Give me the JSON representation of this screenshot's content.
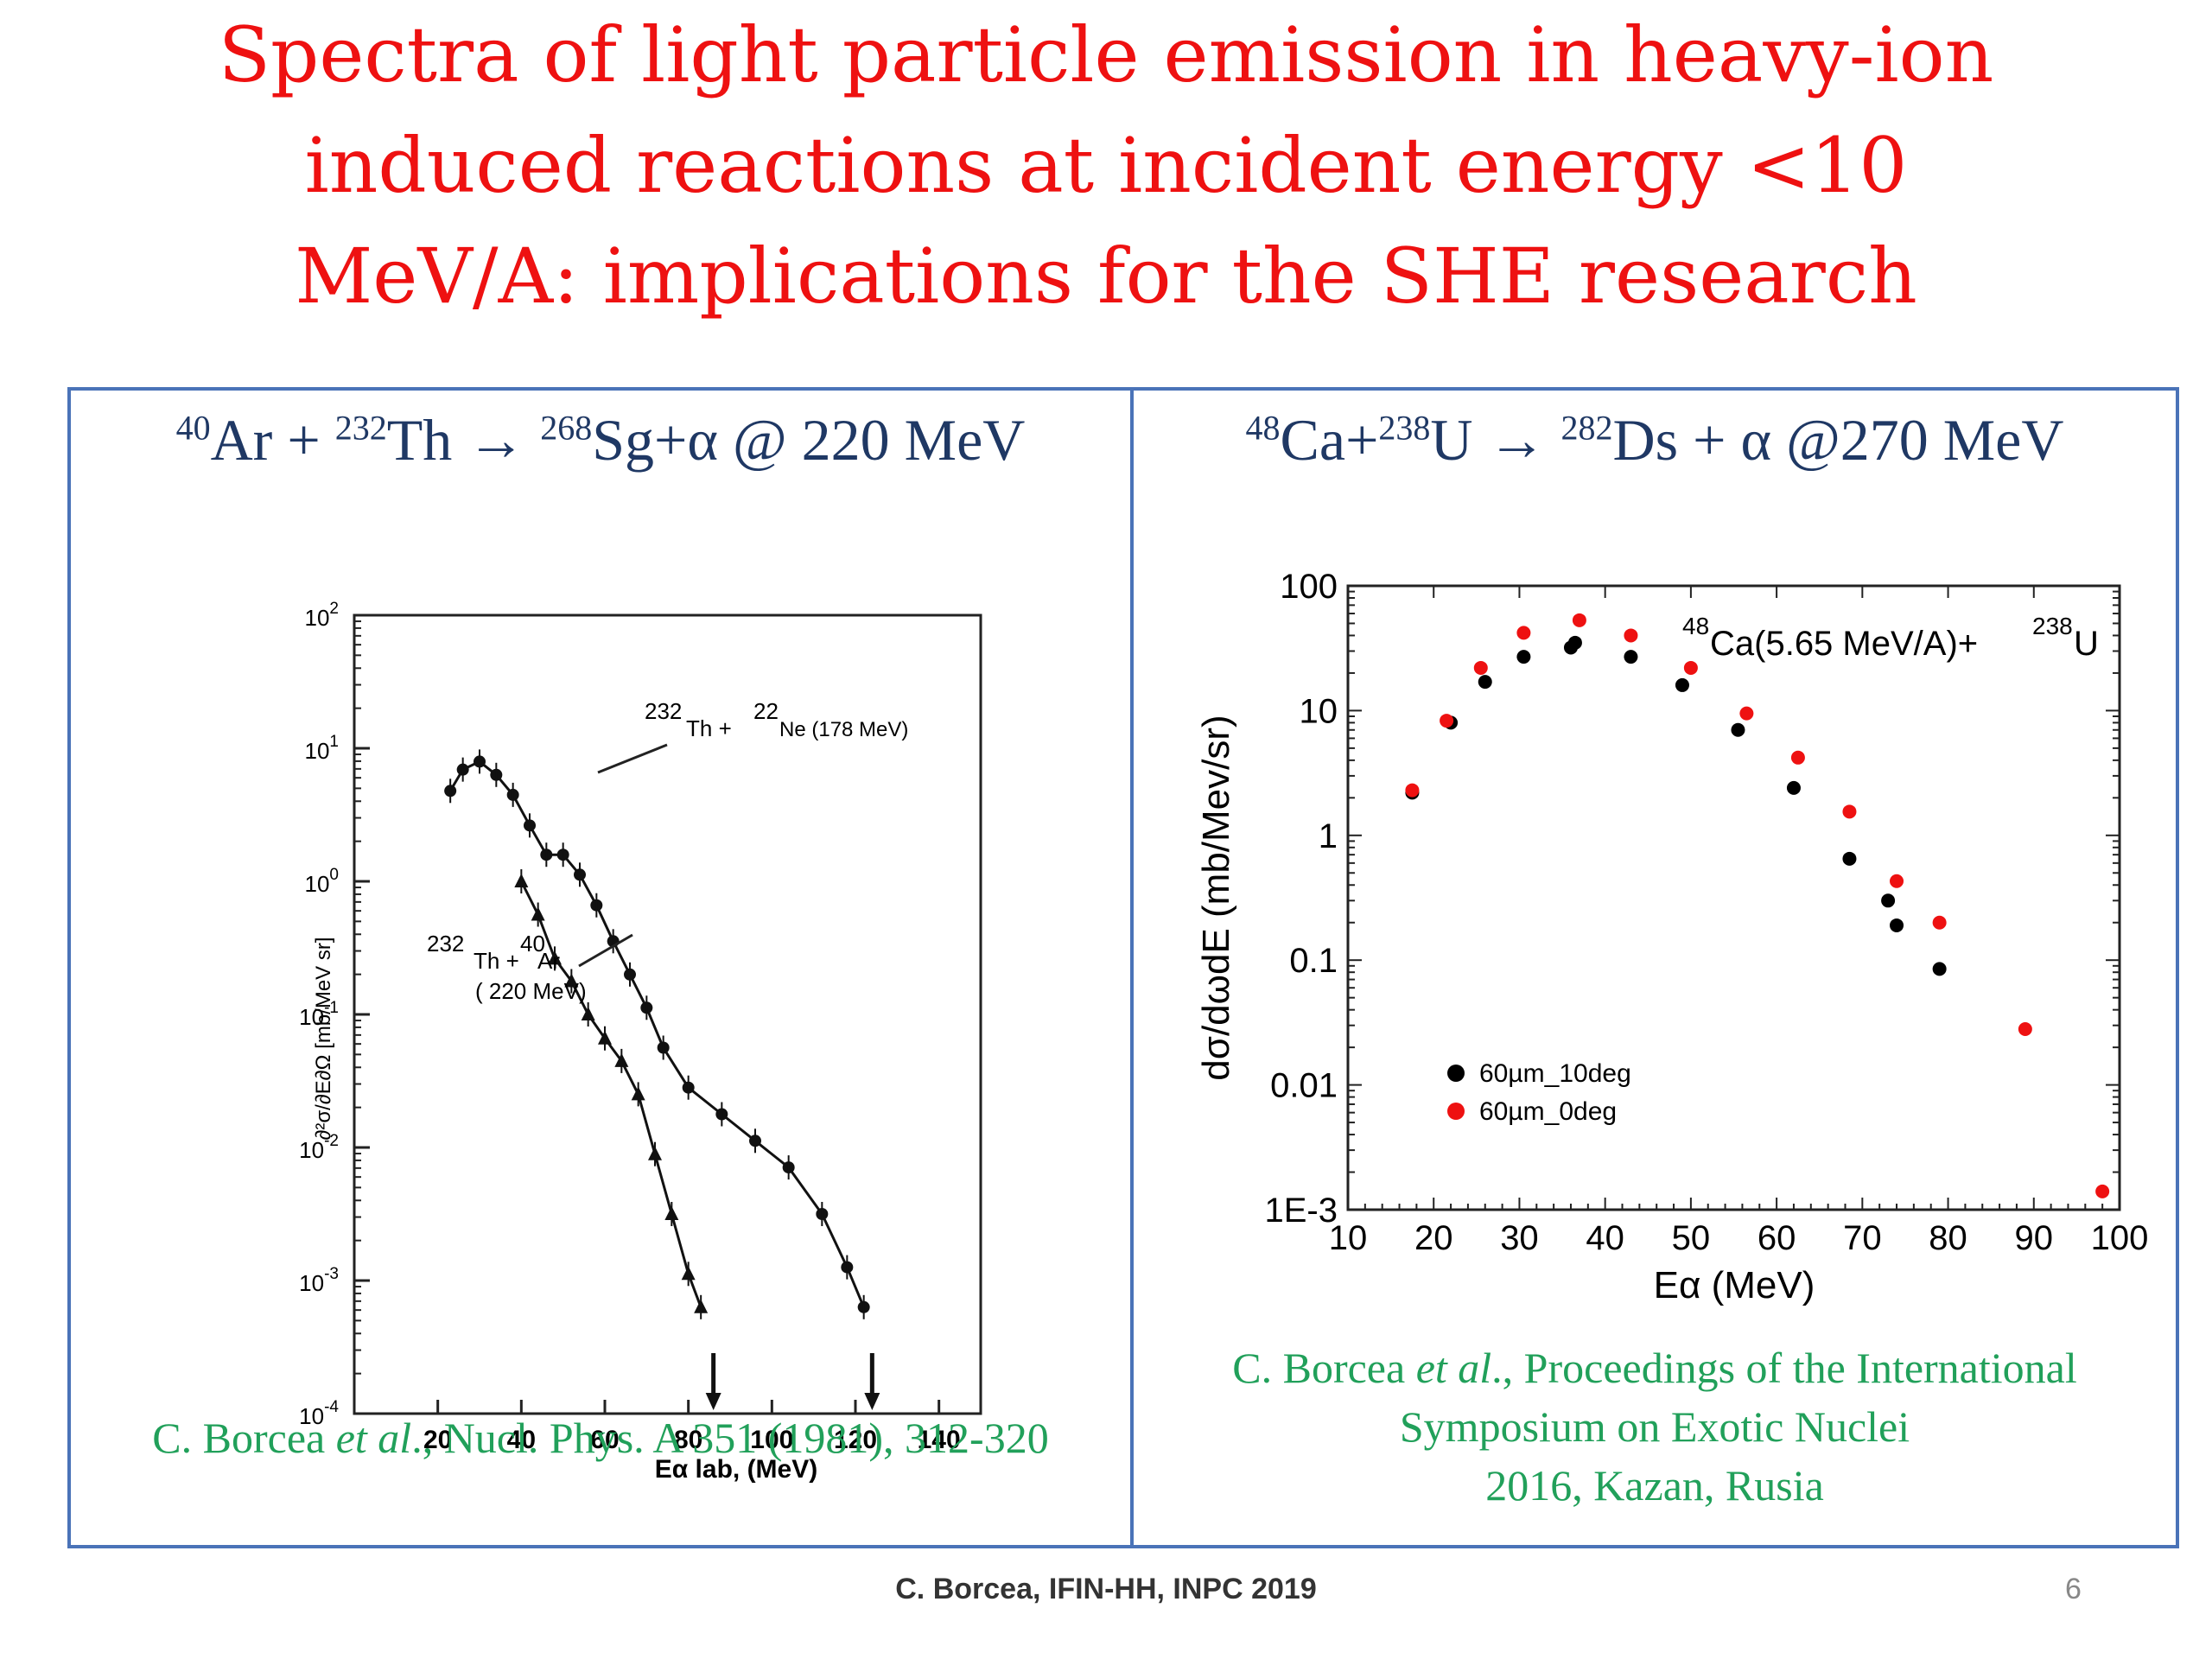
{
  "title": {
    "line1": "Spectra of light particle emission in heavy-ion",
    "line2": "induced reactions at incident energy <10",
    "line3": "MeV/A: implications for the SHE research"
  },
  "left_panel": {
    "reaction": {
      "a_mass": "40",
      "a_sym": "Ar + ",
      "b_mass": "232",
      "b_sym": "Th → ",
      "c_mass": "268",
      "c_sym": "Sg+α @ 220 MeV"
    },
    "citation": {
      "author": "C. Borcea ",
      "etal": "et al",
      "rest": "., Nucl. Phys. A 351 (1981), 312-320"
    }
  },
  "right_panel": {
    "reaction": {
      "a_mass": "48",
      "a_sym": "Ca+",
      "b_mass": "238",
      "b_sym": "U → ",
      "c_mass": "282",
      "c_sym": "Ds + α  @270 MeV"
    },
    "citation": {
      "author": "C. Borcea ",
      "etal": "et al",
      "line1_rest": "., Proceedings of the International",
      "line2": "Symposium on Exotic Nuclei",
      "line3": "2016, Kazan, Rusia"
    }
  },
  "footer": "C. Borcea, IFIN-HH, INPC 2019",
  "page_number": "6",
  "colors": {
    "title": "#ee1111",
    "reaction": "#1f3864",
    "citation": "#21a05a",
    "border": "#4a73b8",
    "series_black": "#000000",
    "series_red": "#ee1111"
  },
  "chart_data": [
    {
      "type": "line",
      "xlabel": "Eα lab, (MeV)",
      "ylabel": "∂²σ/∂E∂Ω [mb/MeV sr]",
      "x_ticks": [
        "20",
        "40",
        "60",
        "80",
        "100",
        "120",
        "140"
      ],
      "y_ticks": [
        "10^2",
        "10^1",
        "10^0",
        "10^-1",
        "10^-2",
        "10^-3",
        "10^-4"
      ],
      "xlim": [
        0,
        150
      ],
      "ylim_log10": [
        -4,
        2
      ],
      "y_scale": "log",
      "annotations": [
        {
          "isotope": "232",
          "sym": "Th + ",
          "proj_mass": "22",
          "proj": "Ne (178 MeV)"
        },
        {
          "isotope": "232",
          "sym": "Th + ",
          "proj_mass": "40",
          "proj": "Ar",
          "energy": "( 220 MeV)"
        }
      ],
      "arrows_x": [
        86,
        124
      ],
      "series": [
        {
          "x": [
            23,
            26,
            30,
            34,
            38,
            42,
            46,
            50,
            54,
            58,
            62,
            66,
            70,
            74,
            80,
            88,
            96,
            104,
            112,
            118,
            122
          ],
          "y": [
            0.68,
            0.84,
            0.9,
            0.8,
            0.65,
            0.42,
            0.2,
            0.2,
            0.05,
            -0.18,
            -0.45,
            -0.7,
            -0.95,
            -1.25,
            -1.55,
            -1.75,
            -1.95,
            -2.15,
            -2.5,
            -2.9,
            -3.2
          ]
        },
        {
          "x": [
            40,
            44,
            48,
            52,
            56,
            60,
            64,
            68,
            72,
            76,
            80,
            83
          ],
          "y": [
            0.0,
            -0.25,
            -0.58,
            -0.75,
            -1.0,
            -1.18,
            -1.35,
            -1.6,
            -2.05,
            -2.5,
            -2.95,
            -3.2
          ]
        }
      ]
    },
    {
      "type": "scatter",
      "xlabel": "Eα (MeV)",
      "ylabel": "dσ/dωdE (mb/Mev/sr)",
      "x_ticks": [
        "10",
        "20",
        "30",
        "40",
        "50",
        "60",
        "70",
        "80",
        "90",
        "100"
      ],
      "y_ticks": [
        "100",
        "10",
        "1",
        "0.1",
        "0.01",
        "1E-3"
      ],
      "xlim": [
        10,
        100
      ],
      "ylim": [
        0.001,
        100
      ],
      "y_scale": "log",
      "annotation": {
        "mass1": "48",
        "text1": "Ca(5.65 MeV/A)+",
        "mass2": "238",
        "text2": "U"
      },
      "legend_position": "lower-left",
      "series": [
        {
          "name": "60µm_10deg",
          "color": "#000000",
          "x": [
            17.5,
            22,
            26,
            30.5,
            36,
            36.5,
            43,
            49,
            55.5,
            62,
            68.5,
            73,
            74,
            79
          ],
          "y": [
            2.2,
            8,
            17,
            27,
            32,
            35,
            27,
            16,
            7,
            2.4,
            0.65,
            0.3,
            0.19,
            0.085
          ]
        },
        {
          "name": "60µm_0deg",
          "color": "#ee1111",
          "x": [
            17.5,
            21.5,
            25.5,
            30.5,
            37,
            43,
            50,
            56.5,
            62.5,
            68.5,
            74,
            79,
            89,
            98
          ],
          "y": [
            2.3,
            8.3,
            22,
            42,
            53,
            40,
            22,
            9.5,
            4.2,
            1.55,
            0.43,
            0.2,
            0.028,
            0.0014
          ]
        }
      ]
    }
  ]
}
